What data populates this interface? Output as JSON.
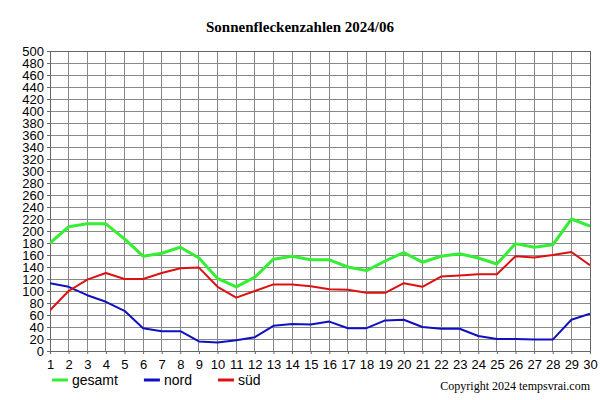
{
  "chart_data": {
    "type": "line",
    "title": "Sonnenfleckenzahlen 2024/06",
    "x": [
      1,
      2,
      3,
      4,
      5,
      6,
      7,
      8,
      9,
      10,
      11,
      12,
      13,
      14,
      15,
      16,
      17,
      18,
      19,
      20,
      21,
      22,
      23,
      24,
      25,
      26,
      27,
      28,
      29,
      30
    ],
    "series": [
      {
        "name": "gesamt",
        "color": "#33ee33",
        "values": [
          180,
          207,
          212,
          212,
          187,
          158,
          163,
          173,
          155,
          121,
          107,
          123,
          153,
          158,
          152,
          152,
          140,
          134,
          150,
          164,
          148,
          158,
          162,
          155,
          145,
          179,
          173,
          177,
          220,
          208
        ]
      },
      {
        "name": "nord",
        "color": "#1010c0",
        "values": [
          113,
          107,
          93,
          82,
          67,
          38,
          33,
          33,
          16,
          14,
          18,
          23,
          42,
          45,
          44,
          49,
          38,
          38,
          51,
          52,
          40,
          37,
          37,
          25,
          20,
          20,
          19,
          19,
          52,
          62
        ]
      },
      {
        "name": "süd",
        "color": "#dd1111",
        "values": [
          68,
          100,
          119,
          130,
          120,
          120,
          130,
          138,
          139,
          107,
          89,
          100,
          111,
          111,
          108,
          103,
          102,
          97,
          97,
          113,
          107,
          124,
          126,
          128,
          128,
          158,
          156,
          160,
          165,
          143
        ]
      }
    ],
    "xlim": [
      1,
      30
    ],
    "xticks": [
      1,
      2,
      3,
      4,
      5,
      6,
      7,
      8,
      9,
      10,
      11,
      12,
      13,
      14,
      15,
      16,
      17,
      18,
      19,
      20,
      21,
      22,
      23,
      24,
      25,
      26,
      27,
      28,
      29,
      30
    ],
    "ylim": [
      0,
      500
    ],
    "yticks": [
      0,
      20,
      40,
      60,
      80,
      100,
      120,
      140,
      160,
      180,
      200,
      220,
      240,
      260,
      280,
      300,
      320,
      340,
      360,
      380,
      400,
      420,
      440,
      460,
      480,
      500
    ],
    "grid": true,
    "legend": "bottom-left",
    "annotations": [
      "Copyright 2024 tempsvrai.com"
    ]
  }
}
